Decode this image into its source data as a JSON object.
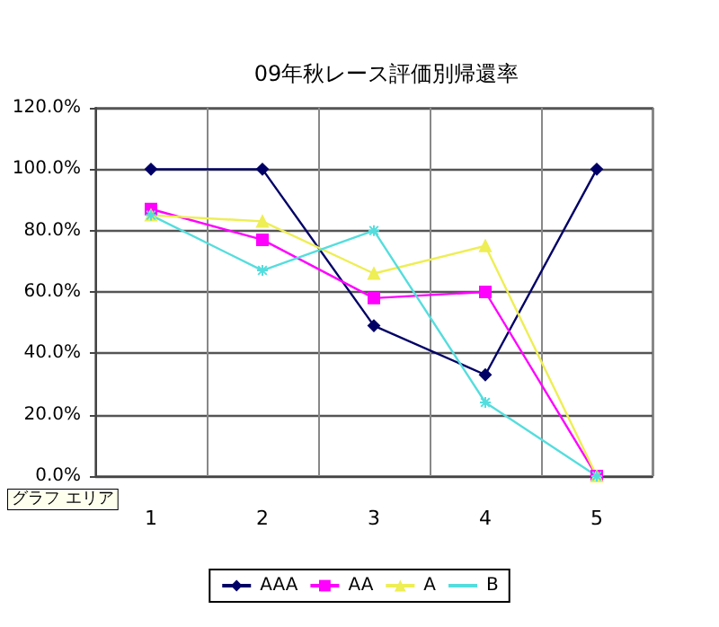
{
  "chart_data": {
    "type": "line",
    "title": "09年秋レース評価別帰還率",
    "categories": [
      "1",
      "2",
      "3",
      "4",
      "5"
    ],
    "series": [
      {
        "name": "AAA",
        "color": "#000066",
        "marker": "diamond",
        "values": [
          100,
          100,
          49,
          33,
          100
        ]
      },
      {
        "name": "AA",
        "color": "#ff00ff",
        "marker": "square",
        "values": [
          87,
          77,
          58,
          60,
          0
        ]
      },
      {
        "name": "A",
        "color": "#eeee55",
        "marker": "triangle",
        "values": [
          85,
          83,
          66,
          75,
          0
        ]
      },
      {
        "name": "B",
        "color": "#55dddd",
        "marker": "cross",
        "values": [
          85,
          67,
          80,
          24,
          0
        ]
      }
    ],
    "ylim": [
      0,
      120
    ],
    "yticks": [
      {
        "value": 0,
        "label": "0.0%"
      },
      {
        "value": 20,
        "label": "20.0%"
      },
      {
        "value": 40,
        "label": "40.0%"
      },
      {
        "value": 60,
        "label": "60.0%"
      },
      {
        "value": 80,
        "label": "80.0%"
      },
      {
        "value": 100,
        "label": "100.0%"
      },
      {
        "value": 120,
        "label": "120.0%"
      }
    ],
    "grid": true,
    "legend": "bottom",
    "line_style": "solid",
    "annotations": [
      "グラフ エリア"
    ]
  }
}
